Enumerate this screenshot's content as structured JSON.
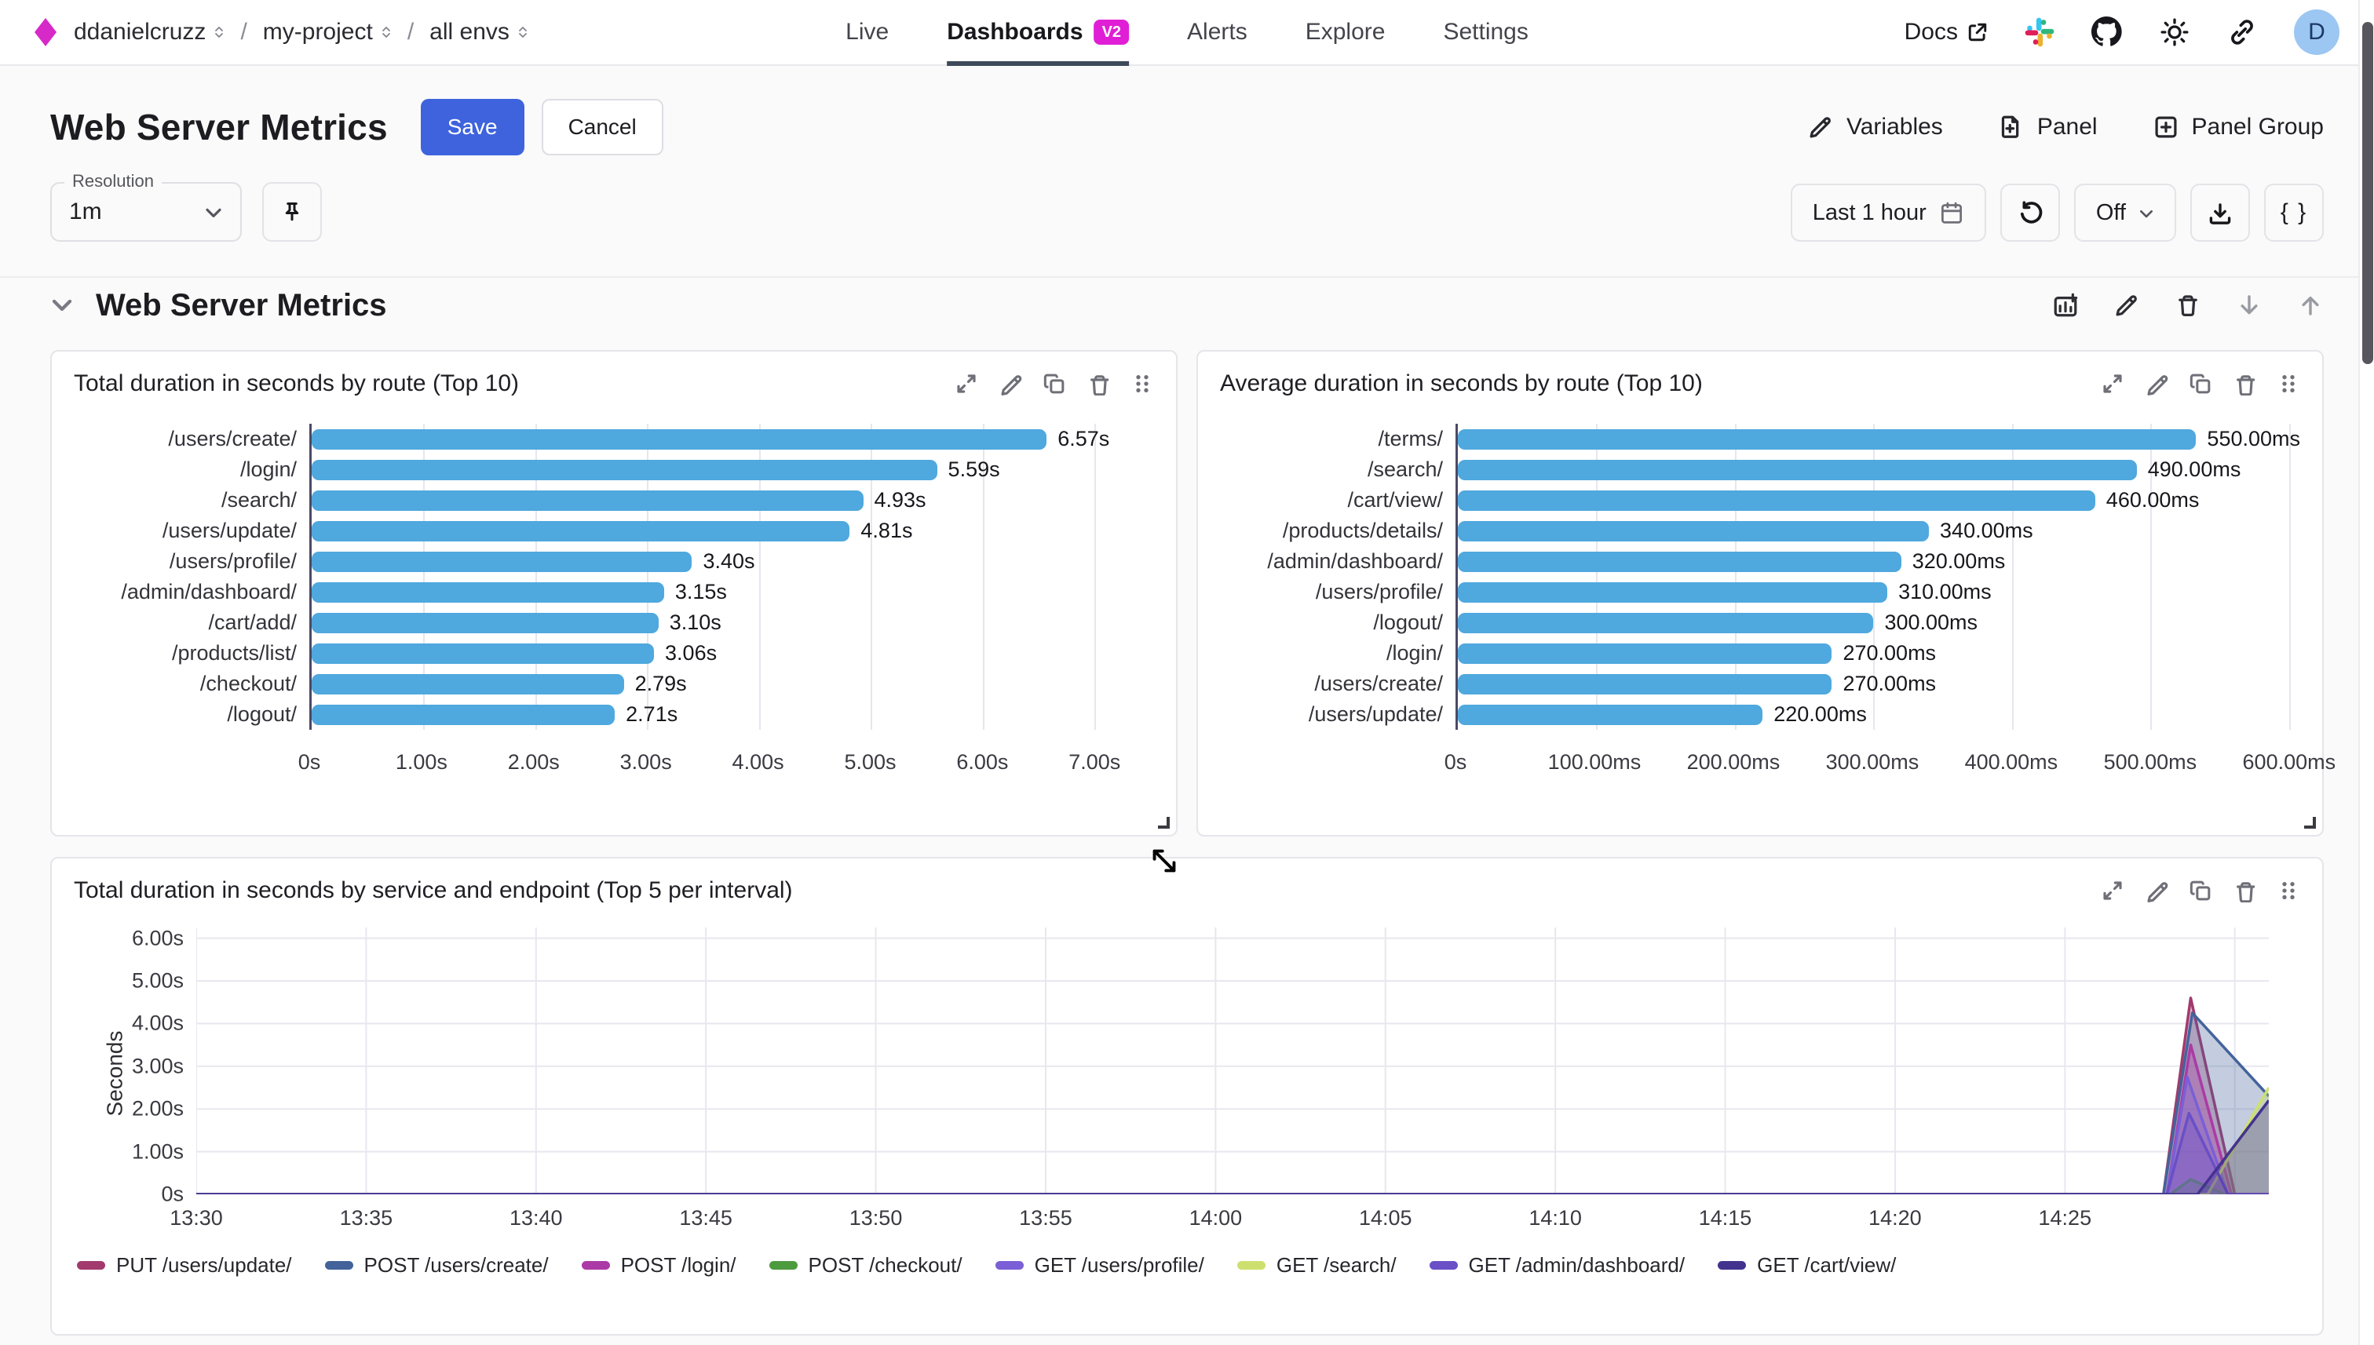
{
  "colors": {
    "brand_magenta": "#d629c8",
    "accent_blue": "#3e63dd",
    "bar_blue": "#4fa8de",
    "badge_magenta": "#e01ed6",
    "active_tab_underline": "#3e4a5a"
  },
  "topbar": {
    "breadcrumb": {
      "org": "ddanielcruzz",
      "project": "my-project",
      "env": "all envs"
    },
    "tabs": [
      {
        "label": "Live",
        "active": false
      },
      {
        "label": "Dashboards",
        "active": true,
        "badge": "V2"
      },
      {
        "label": "Alerts",
        "active": false
      },
      {
        "label": "Explore",
        "active": false
      },
      {
        "label": "Settings",
        "active": false
      }
    ],
    "docs_label": "Docs",
    "right_icons": [
      "external-link-icon",
      "slack-icon",
      "github-icon",
      "theme-sun-icon",
      "share-link-icon"
    ],
    "avatar_initial": "D"
  },
  "header": {
    "title": "Web Server Metrics",
    "save_label": "Save",
    "cancel_label": "Cancel",
    "actions": [
      {
        "icon": "pencil-icon",
        "label": "Variables"
      },
      {
        "icon": "file-plus-icon",
        "label": "Panel"
      },
      {
        "icon": "plus-square-icon",
        "label": "Panel Group"
      }
    ]
  },
  "toolbar": {
    "resolution_label": "Resolution",
    "resolution_value": "1m",
    "pin_icon": "pin-icon",
    "time_range_label": "Last 1 hour",
    "refresh_icon": "refresh-icon",
    "auto_refresh_value": "Off",
    "download_icon": "download-icon",
    "braces_label": "{ }"
  },
  "section": {
    "title": "Web Server Metrics",
    "icons": [
      "add-panel-icon",
      "edit-icon",
      "delete-icon",
      "move-down-icon",
      "move-up-icon"
    ]
  },
  "panel_icons": [
    "expand-icon",
    "edit-icon",
    "copy-icon",
    "delete-icon",
    "drag-handle-icon"
  ],
  "chart_data": [
    {
      "type": "bar",
      "orientation": "horizontal",
      "title": "Total duration in seconds by route (Top 10)",
      "categories": [
        "/users/create/",
        "/login/",
        "/search/",
        "/users/update/",
        "/users/profile/",
        "/admin/dashboard/",
        "/cart/add/",
        "/products/list/",
        "/checkout/",
        "/logout/"
      ],
      "values": [
        6.57,
        5.59,
        4.93,
        4.81,
        3.4,
        3.15,
        3.1,
        3.06,
        2.79,
        2.71
      ],
      "value_labels": [
        "6.57s",
        "5.59s",
        "4.93s",
        "4.81s",
        "3.40s",
        "3.15s",
        "3.10s",
        "3.06s",
        "2.79s",
        "2.71s"
      ],
      "x_ticks": [
        {
          "value": 0,
          "label": "0s"
        },
        {
          "value": 1,
          "label": "1.00s"
        },
        {
          "value": 2,
          "label": "2.00s"
        },
        {
          "value": 3,
          "label": "3.00s"
        },
        {
          "value": 4,
          "label": "4.00s"
        },
        {
          "value": 5,
          "label": "5.00s"
        },
        {
          "value": 6,
          "label": "6.00s"
        },
        {
          "value": 7,
          "label": "7.00s"
        }
      ],
      "axis_max": 7.53,
      "bar_color": "#4fa8de",
      "grid": true,
      "legend_position": "none"
    },
    {
      "type": "bar",
      "orientation": "horizontal",
      "title": "Average duration in seconds by route (Top 10)",
      "categories": [
        "/terms/",
        "/search/",
        "/cart/view/",
        "/products/details/",
        "/admin/dashboard/",
        "/users/profile/",
        "/logout/",
        "/login/",
        "/users/create/",
        "/users/update/"
      ],
      "values": [
        550,
        490,
        460,
        340,
        320,
        310,
        300,
        270,
        270,
        220
      ],
      "value_labels": [
        "550.00ms",
        "490.00ms",
        "460.00ms",
        "340.00ms",
        "320.00ms",
        "310.00ms",
        "300.00ms",
        "270.00ms",
        "270.00ms",
        "220.00ms"
      ],
      "x_ticks": [
        {
          "value": 0,
          "label": "0s"
        },
        {
          "value": 100,
          "label": "100.00ms"
        },
        {
          "value": 200,
          "label": "200.00ms"
        },
        {
          "value": 300,
          "label": "300.00ms"
        },
        {
          "value": 400,
          "label": "400.00ms"
        },
        {
          "value": 500,
          "label": "500.00ms"
        },
        {
          "value": 600,
          "label": "600.00ms"
        }
      ],
      "axis_max": 608,
      "bar_color": "#4fa8de",
      "grid": true,
      "legend_position": "none"
    },
    {
      "type": "area",
      "title": "Total duration in seconds by service and endpoint (Top 5 per interval)",
      "ylabel": "Seconds",
      "y_ticks": [
        {
          "value": 0,
          "label": "0s"
        },
        {
          "value": 1,
          "label": "1.00s"
        },
        {
          "value": 2,
          "label": "2.00s"
        },
        {
          "value": 3,
          "label": "3.00s"
        },
        {
          "value": 4,
          "label": "4.00s"
        },
        {
          "value": 5,
          "label": "5.00s"
        },
        {
          "value": 6,
          "label": "6.00s"
        }
      ],
      "ylim": [
        0,
        6.25
      ],
      "x_domain_minutes": [
        0,
        61
      ],
      "x_ticks": [
        {
          "minute": 0,
          "label": "13:30"
        },
        {
          "minute": 5,
          "label": "13:35"
        },
        {
          "minute": 10,
          "label": "13:40"
        },
        {
          "minute": 15,
          "label": "13:45"
        },
        {
          "minute": 20,
          "label": "13:50"
        },
        {
          "minute": 25,
          "label": "13:55"
        },
        {
          "minute": 30,
          "label": "14:00"
        },
        {
          "minute": 35,
          "label": "14:05"
        },
        {
          "minute": 40,
          "label": "14:10"
        },
        {
          "minute": 45,
          "label": "14:15"
        },
        {
          "minute": 50,
          "label": "14:20"
        },
        {
          "minute": 55,
          "label": "14:25"
        }
      ],
      "grid": true,
      "legend_position": "bottom",
      "series": [
        {
          "name": "PUT /users/update/",
          "color": "#a23a6e",
          "points": [
            [
              0,
              0
            ],
            [
              57.9,
              0
            ],
            [
              58.7,
              4.6
            ],
            [
              60.0,
              0
            ],
            [
              61,
              0
            ]
          ]
        },
        {
          "name": "POST /users/create/",
          "color": "#44639b",
          "points": [
            [
              0,
              0
            ],
            [
              57.9,
              0
            ],
            [
              58.75,
              4.25
            ],
            [
              61,
              2.3
            ]
          ]
        },
        {
          "name": "POST /login/",
          "color": "#ac3aa6",
          "points": [
            [
              0,
              0
            ],
            [
              58.0,
              0
            ],
            [
              58.7,
              3.5
            ],
            [
              59.9,
              0
            ],
            [
              61,
              0
            ]
          ]
        },
        {
          "name": "POST /checkout/",
          "color": "#4e9a3f",
          "points": [
            [
              0,
              0
            ],
            [
              58.1,
              0
            ],
            [
              58.7,
              0.35
            ],
            [
              59.7,
              0
            ],
            [
              61,
              0
            ]
          ]
        },
        {
          "name": "GET /users/profile/",
          "color": "#7a5fd6",
          "points": [
            [
              0,
              0
            ],
            [
              58.0,
              0
            ],
            [
              58.6,
              2.75
            ],
            [
              59.8,
              0
            ],
            [
              61,
              0
            ]
          ]
        },
        {
          "name": "GET /search/",
          "color": "#cde06f",
          "points": [
            [
              0,
              0
            ],
            [
              59.2,
              0
            ],
            [
              61,
              2.5
            ]
          ]
        },
        {
          "name": "GET /admin/dashboard/",
          "color": "#6a4fc6",
          "points": [
            [
              0,
              0
            ],
            [
              58.0,
              0
            ],
            [
              58.65,
              1.9
            ],
            [
              59.8,
              0
            ],
            [
              61,
              0
            ]
          ]
        },
        {
          "name": "GET /cart/view/",
          "color": "#43338f",
          "points": [
            [
              0,
              0
            ],
            [
              58.9,
              0
            ],
            [
              61,
              2.2
            ]
          ]
        }
      ]
    }
  ]
}
